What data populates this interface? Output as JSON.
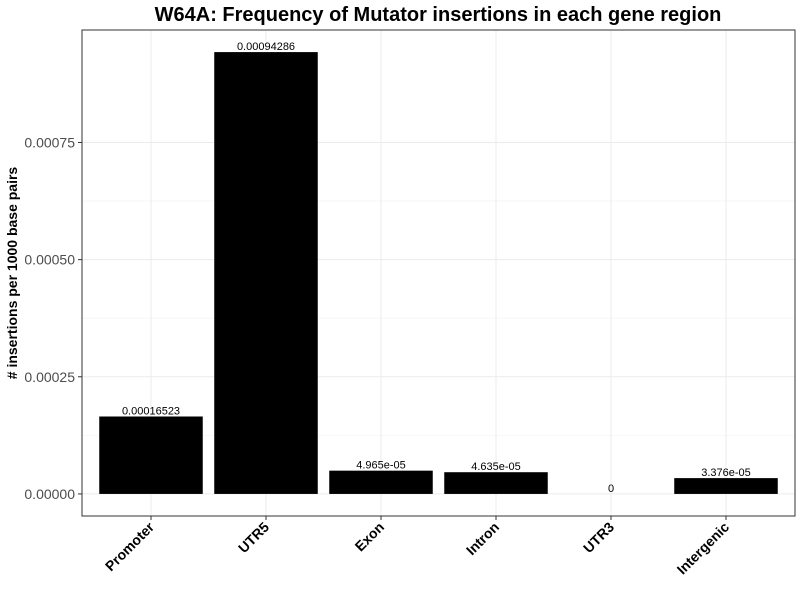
{
  "chart_data": {
    "type": "bar",
    "title": "W64A: Frequency of Mutator insertions in each gene region",
    "xlabel": "",
    "ylabel": "# insertions per 1000 base pairs",
    "categories": [
      "Promoter",
      "UTR5",
      "Exon",
      "Intron",
      "UTR3",
      "Intergenic"
    ],
    "values": [
      0.00016523,
      0.00094286,
      4.965e-05,
      4.635e-05,
      0,
      3.376e-05
    ],
    "data_labels": [
      "0.00016523",
      "0.00094286",
      "4.965e-05",
      "4.635e-05",
      "0",
      "3.376e-05"
    ],
    "yticks": [
      0,
      0.00025,
      0.0005,
      0.00075
    ],
    "ytick_labels": [
      "0.00000",
      "0.00025",
      "0.00050",
      "0.00075"
    ],
    "ylim": [
      -4.71e-05,
      0.00099
    ],
    "grid": true,
    "bar_color": "#000000",
    "grid_color": "#ebebeb",
    "panel_border_color": "#333333"
  }
}
